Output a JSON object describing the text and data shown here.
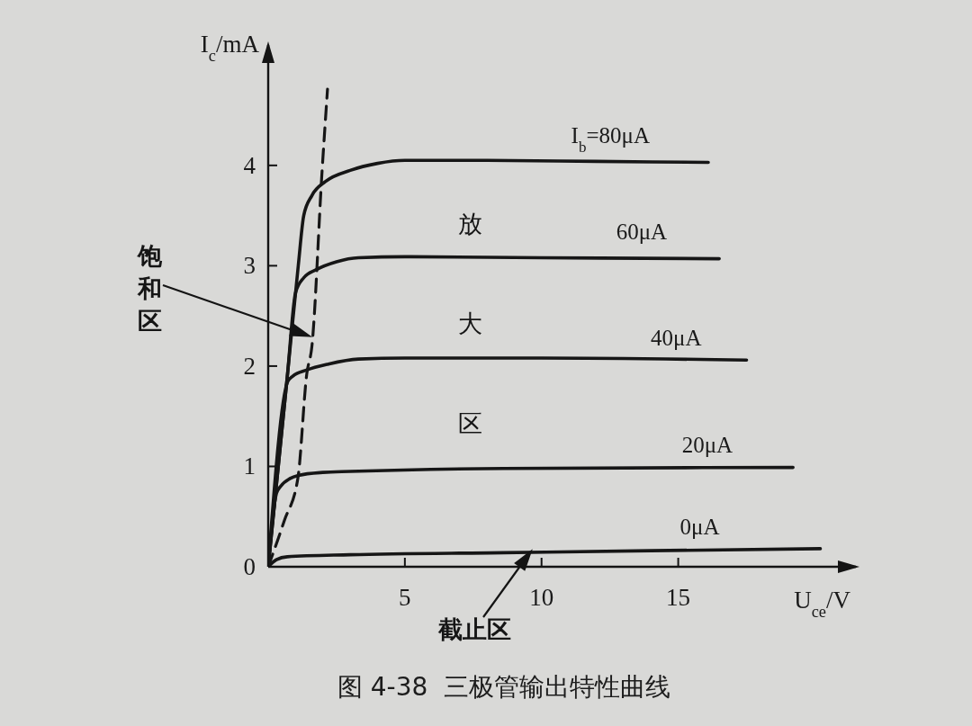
{
  "chart_data": {
    "type": "line",
    "title": "图 4-38  三极管输出特性曲线",
    "xlabel": "U$_{ce}$/V",
    "ylabel": "I$_{c}$/mA",
    "xlim": [
      0,
      21.5
    ],
    "ylim": [
      0,
      5.2
    ],
    "xticks": [
      5,
      10,
      15
    ],
    "yticks": [
      0,
      1,
      2,
      3,
      4
    ],
    "line_style": "solid",
    "series": [
      {
        "name": "I$_{b}$=80μA",
        "color": "#161616",
        "x": [
          0,
          0.7,
          1.1,
          1.3,
          1.6,
          2.1,
          3,
          4,
          5,
          8,
          12,
          16.1
        ],
        "values": [
          0,
          1.9,
          3.0,
          3.5,
          3.7,
          3.84,
          3.95,
          4.02,
          4.05,
          4.05,
          4.04,
          4.03
        ]
      },
      {
        "name": "60μA",
        "color": "#161616",
        "x": [
          0,
          0.7,
          1.0,
          1.3,
          1.75,
          2.5,
          3.3,
          5,
          10,
          16.5
        ],
        "values": [
          0,
          1.9,
          2.73,
          2.88,
          2.96,
          3.04,
          3.08,
          3.09,
          3.08,
          3.07
        ]
      },
      {
        "name": "40μA",
        "color": "#161616",
        "x": [
          0,
          0.72,
          0.9,
          1.4,
          2.2,
          3.3,
          5,
          10,
          17.5
        ],
        "values": [
          0,
          1.85,
          1.9,
          1.96,
          2.02,
          2.07,
          2.08,
          2.08,
          2.06
        ]
      },
      {
        "name": "20μA",
        "color": "#161616",
        "x": [
          0,
          0.3,
          0.45,
          0.8,
          1.1,
          2,
          3,
          8.6,
          19.2
        ],
        "values": [
          0,
          0.73,
          0.8,
          0.88,
          0.91,
          0.94,
          0.95,
          0.98,
          0.99
        ]
      },
      {
        "name": "0μA",
        "color": "#161616",
        "x": [
          0,
          0.3,
          0.7,
          3,
          8.6,
          14,
          20.2
        ],
        "values": [
          0,
          0.07,
          0.1,
          0.12,
          0.14,
          0.16,
          0.18
        ]
      },
      {
        "color": "#161616",
        "line_style": "dashed",
        "x": [
          0,
          0.59,
          1.09,
          1.41,
          1.6,
          1.97,
          2.17
        ],
        "values": [
          0,
          0.46,
          0.89,
          1.92,
          2.2,
          3.94,
          4.76
        ]
      }
    ],
    "annotations": [
      {
        "text": "饱和区",
        "x": 1.5,
        "y": 2.3
      },
      "放大区",
      {
        "text": "截止区",
        "x": 9.6,
        "y": 0.15
      }
    ]
  }
}
